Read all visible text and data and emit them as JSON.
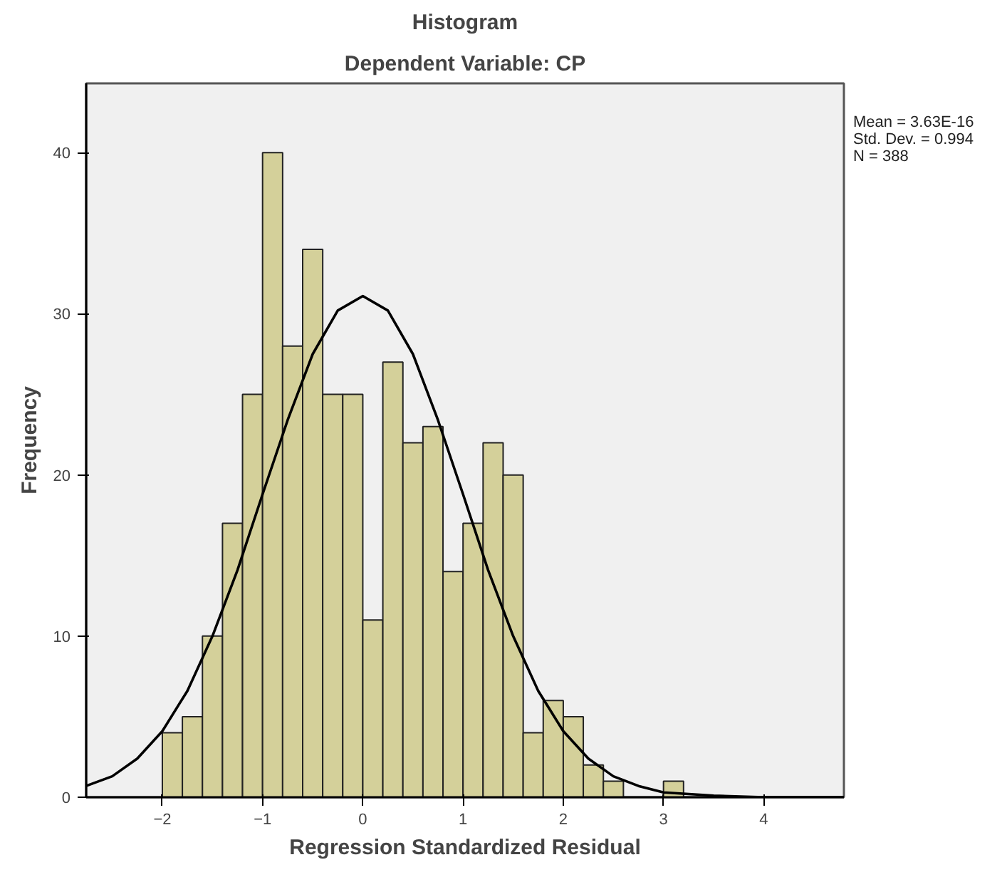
{
  "chart_data": {
    "type": "histogram",
    "title": "Histogram",
    "subtitle": "Dependent Variable: CP",
    "xlabel": "Regression Standardized Residual",
    "ylabel": "Frequency",
    "bins": [
      -2.0,
      -1.8,
      -1.6,
      -1.4,
      -1.2,
      -1.0,
      -0.8,
      -0.6,
      -0.4,
      -0.2,
      0.0,
      0.2,
      0.4,
      0.6,
      0.8,
      1.0,
      1.2,
      1.4,
      1.6,
      1.8,
      2.0,
      2.2,
      2.4,
      2.6,
      2.8,
      3.0,
      3.2
    ],
    "values": [
      4,
      5,
      10,
      17,
      25,
      40,
      28,
      34,
      25,
      25,
      11,
      27,
      22,
      23,
      14,
      17,
      22,
      20,
      4,
      6,
      5,
      2,
      1,
      0,
      0,
      1
    ],
    "color": "#d4d09a",
    "series": [
      {
        "type": "line",
        "color": "#000000",
        "x": [
          -2.76,
          -2.5,
          -2.25,
          -2.0,
          -1.75,
          -1.5,
          -1.25,
          -1.0,
          -0.75,
          -0.5,
          -0.25,
          0.0,
          0.25,
          0.5,
          0.75,
          1.0,
          1.25,
          1.5,
          1.75,
          2.0,
          2.25,
          2.5,
          2.75,
          3.0,
          3.25,
          3.5,
          4.0,
          4.5,
          4.8
        ],
        "values": [
          0.7,
          1.3,
          2.4,
          4.1,
          6.6,
          10.0,
          14.1,
          18.8,
          23.4,
          27.5,
          30.2,
          31.1,
          30.2,
          27.5,
          23.4,
          18.8,
          14.1,
          10.0,
          6.6,
          4.1,
          2.4,
          1.3,
          0.7,
          0.3,
          0.2,
          0.1,
          0.0,
          0.0,
          0.0
        ]
      }
    ],
    "xlim": [
      -2.76,
      4.8
    ],
    "ylim": [
      0,
      44.3
    ],
    "xticks": [
      -2,
      -1,
      0,
      1,
      2,
      3,
      4
    ],
    "yticks": [
      0,
      10,
      20,
      30,
      40
    ],
    "grid": false,
    "annotations": [
      "Mean = 3.63E-16",
      "Std. Dev. = 0.994",
      "N = 388"
    ]
  }
}
